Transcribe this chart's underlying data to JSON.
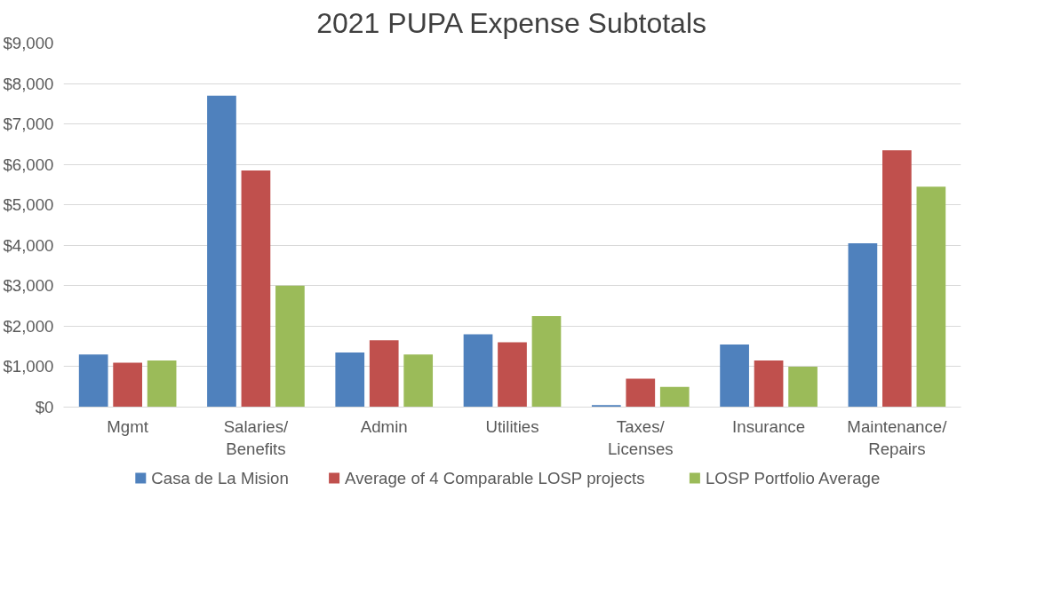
{
  "chart_data": {
    "type": "bar",
    "title": "2021 PUPA Expense Subtotals",
    "categories": [
      "Mgmt",
      "Salaries/\nBenefits",
      "Admin",
      "Utilities",
      "Taxes/\nLicenses",
      "Insurance",
      "Maintenance/\nRepairs"
    ],
    "series": [
      {
        "name": "Casa de La Mision",
        "color": "#4f81bd",
        "values": [
          1300,
          7700,
          1350,
          1800,
          50,
          1550,
          4050
        ]
      },
      {
        "name": "Average of 4 Comparable LOSP projects",
        "color": "#c0504d",
        "values": [
          1100,
          5850,
          1650,
          1600,
          700,
          1150,
          6350
        ]
      },
      {
        "name": "LOSP Portfolio Average",
        "color": "#9bbb59",
        "values": [
          1150,
          3000,
          1300,
          2250,
          500,
          1000,
          5450
        ]
      }
    ],
    "ylim": [
      0,
      9000
    ],
    "yticks": [
      {
        "value": 0,
        "label": "$0"
      },
      {
        "value": 1000,
        "label": "$1,000"
      },
      {
        "value": 2000,
        "label": "$2,000"
      },
      {
        "value": 3000,
        "label": "$3,000"
      },
      {
        "value": 4000,
        "label": "$4,000"
      },
      {
        "value": 5000,
        "label": "$5,000"
      },
      {
        "value": 6000,
        "label": "$6,000"
      },
      {
        "value": 7000,
        "label": "$7,000"
      },
      {
        "value": 8000,
        "label": "$8,000"
      },
      {
        "value": 9000,
        "label": "$9,000"
      }
    ],
    "grid": "y",
    "legend": "bottom"
  }
}
